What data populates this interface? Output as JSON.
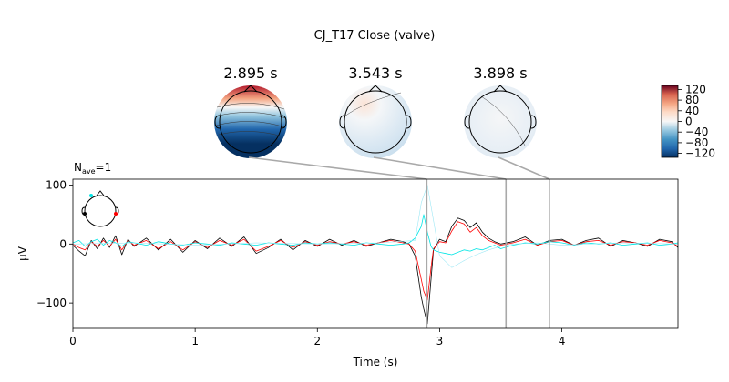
{
  "figure": {
    "suptitle": "CJ_T17 Close (valve)",
    "nave_base": "N",
    "nave_sub": "ave",
    "nave_value": "=1"
  },
  "topomaps": [
    {
      "time_label": "2.895 s",
      "time": 2.895
    },
    {
      "time_label": "3.543 s",
      "time": 3.543
    },
    {
      "time_label": "3.898 s",
      "time": 3.898
    }
  ],
  "colorbar": {
    "ticks": [
      "120",
      "80",
      "40",
      "0",
      "−40",
      "−80",
      "−120"
    ],
    "tick_values": [
      120,
      80,
      40,
      0,
      -40,
      -80,
      -120
    ],
    "vmin": -135,
    "vmax": 135,
    "colormap": "RdBu_r"
  },
  "chart_data": {
    "type": "line",
    "xlabel": "Time (s)",
    "ylabel": "µV",
    "xlim": [
      0,
      4.95
    ],
    "ylim": [
      -143,
      110
    ],
    "x_ticks": [
      0,
      1,
      2,
      3,
      4
    ],
    "x_tick_labels": [
      "0",
      "1",
      "2",
      "3",
      "4"
    ],
    "y_ticks": [
      100,
      0,
      -100
    ],
    "y_tick_labels": [
      "100",
      "0",
      "−100"
    ],
    "grid": false,
    "markers": [
      2.895,
      3.543,
      3.898
    ],
    "series": [
      {
        "color": "#000000",
        "x": [
          0.0,
          0.05,
          0.1,
          0.15,
          0.2,
          0.25,
          0.3,
          0.35,
          0.4,
          0.45,
          0.5,
          0.6,
          0.7,
          0.8,
          0.9,
          1.0,
          1.1,
          1.2,
          1.3,
          1.4,
          1.5,
          1.6,
          1.7,
          1.8,
          1.9,
          2.0,
          2.1,
          2.2,
          2.3,
          2.4,
          2.5,
          2.6,
          2.7,
          2.75,
          2.8,
          2.85,
          2.87,
          2.9,
          2.93,
          2.95,
          3.0,
          3.05,
          3.1,
          3.15,
          3.2,
          3.25,
          3.3,
          3.35,
          3.4,
          3.45,
          3.5,
          3.6,
          3.7,
          3.8,
          3.9,
          4.0,
          4.1,
          4.2,
          4.3,
          4.4,
          4.5,
          4.6,
          4.7,
          4.8,
          4.9,
          4.95
        ],
        "y": [
          -2,
          -12,
          -20,
          6,
          -8,
          10,
          -6,
          14,
          -18,
          8,
          -4,
          10,
          -10,
          8,
          -14,
          6,
          -8,
          10,
          -4,
          12,
          -16,
          -6,
          8,
          -10,
          6,
          -4,
          8,
          -2,
          6,
          -4,
          2,
          8,
          4,
          0,
          -20,
          -90,
          -110,
          -135,
          -60,
          -10,
          8,
          4,
          30,
          44,
          40,
          28,
          36,
          20,
          10,
          4,
          0,
          4,
          12,
          -2,
          6,
          8,
          -2,
          6,
          10,
          -4,
          6,
          2,
          -4,
          8,
          4,
          -6
        ]
      },
      {
        "color": "#ff0000",
        "x": [
          0.0,
          0.05,
          0.1,
          0.15,
          0.2,
          0.25,
          0.3,
          0.35,
          0.4,
          0.45,
          0.5,
          0.6,
          0.7,
          0.8,
          0.9,
          1.0,
          1.1,
          1.2,
          1.3,
          1.4,
          1.5,
          1.6,
          1.7,
          1.8,
          1.9,
          2.0,
          2.1,
          2.2,
          2.3,
          2.4,
          2.5,
          2.6,
          2.7,
          2.75,
          2.8,
          2.85,
          2.87,
          2.9,
          2.93,
          2.95,
          3.0,
          3.05,
          3.1,
          3.15,
          3.2,
          3.25,
          3.3,
          3.35,
          3.4,
          3.45,
          3.5,
          3.6,
          3.7,
          3.8,
          3.9,
          4.0,
          4.1,
          4.2,
          4.3,
          4.4,
          4.5,
          4.6,
          4.7,
          4.8,
          4.9,
          4.95
        ],
        "y": [
          0,
          -6,
          -10,
          4,
          -4,
          6,
          -4,
          8,
          -10,
          6,
          -2,
          6,
          -8,
          4,
          -10,
          4,
          -6,
          6,
          -2,
          8,
          -12,
          -4,
          6,
          -6,
          4,
          -2,
          4,
          0,
          4,
          -2,
          2,
          6,
          2,
          0,
          -12,
          -60,
          -80,
          -95,
          -40,
          -8,
          4,
          2,
          22,
          38,
          34,
          20,
          28,
          14,
          6,
          2,
          -2,
          2,
          8,
          -2,
          4,
          6,
          -2,
          4,
          6,
          -2,
          4,
          2,
          -2,
          6,
          2,
          -4
        ]
      },
      {
        "color": "#00e5e5",
        "x": [
          0.0,
          0.05,
          0.1,
          0.15,
          0.2,
          0.25,
          0.3,
          0.35,
          0.4,
          0.45,
          0.5,
          0.6,
          0.7,
          0.8,
          0.9,
          1.0,
          1.1,
          1.2,
          1.3,
          1.4,
          1.5,
          1.6,
          1.7,
          1.8,
          1.9,
          2.0,
          2.1,
          2.2,
          2.3,
          2.4,
          2.5,
          2.6,
          2.7,
          2.75,
          2.8,
          2.85,
          2.87,
          2.9,
          2.93,
          2.95,
          3.0,
          3.05,
          3.1,
          3.15,
          3.2,
          3.25,
          3.3,
          3.35,
          3.4,
          3.45,
          3.5,
          3.6,
          3.7,
          3.8,
          3.9,
          4.0,
          4.1,
          4.2,
          4.3,
          4.4,
          4.5,
          4.6,
          4.7,
          4.8,
          4.9,
          4.95
        ],
        "y": [
          2,
          6,
          -4,
          4,
          8,
          -2,
          6,
          2,
          -4,
          4,
          2,
          -2,
          4,
          0,
          -2,
          2,
          0,
          -2,
          2,
          0,
          -2,
          2,
          0,
          -2,
          2,
          0,
          2,
          0,
          -2,
          2,
          0,
          -2,
          0,
          2,
          10,
          30,
          50,
          20,
          -4,
          -10,
          -14,
          -16,
          -18,
          -14,
          -10,
          -12,
          -8,
          -10,
          -6,
          -2,
          -8,
          -2,
          2,
          0,
          4,
          2,
          -2,
          2,
          0,
          2,
          -2,
          0,
          2,
          -2,
          0,
          2
        ]
      },
      {
        "color": "#9ee8f5",
        "x": [
          0.0,
          0.5,
          1.0,
          1.5,
          2.0,
          2.5,
          2.8,
          2.85,
          2.9,
          2.95,
          3.0,
          3.1,
          3.2,
          3.3,
          3.4,
          3.5,
          3.6,
          3.8,
          4.0,
          4.5,
          4.95
        ],
        "y": [
          0,
          2,
          -2,
          2,
          0,
          2,
          6,
          70,
          100,
          40,
          -20,
          -40,
          -28,
          -18,
          -10,
          -4,
          0,
          2,
          -2,
          2,
          0
        ]
      }
    ]
  }
}
